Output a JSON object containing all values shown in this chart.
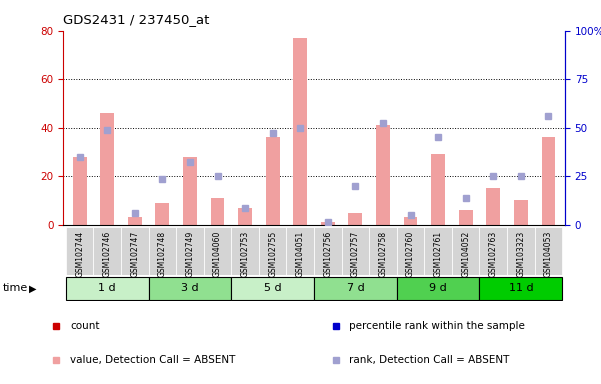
{
  "title": "GDS2431 / 237450_at",
  "samples": [
    "GSM102744",
    "GSM102746",
    "GSM102747",
    "GSM102748",
    "GSM102749",
    "GSM104060",
    "GSM102753",
    "GSM102755",
    "GSM104051",
    "GSM102756",
    "GSM102757",
    "GSM102758",
    "GSM102760",
    "GSM102761",
    "GSM104052",
    "GSM102763",
    "GSM103323",
    "GSM104053"
  ],
  "groups": [
    {
      "label": "1 d",
      "indices": [
        0,
        1,
        2
      ],
      "color": "#c8f0c8"
    },
    {
      "label": "3 d",
      "indices": [
        3,
        4,
        5
      ],
      "color": "#90e090"
    },
    {
      "label": "5 d",
      "indices": [
        6,
        7,
        8
      ],
      "color": "#c8f0c8"
    },
    {
      "label": "7 d",
      "indices": [
        9,
        10,
        11
      ],
      "color": "#90e090"
    },
    {
      "label": "9 d",
      "indices": [
        12,
        13,
        14
      ],
      "color": "#50d050"
    },
    {
      "label": "11 d",
      "indices": [
        15,
        16,
        17
      ],
      "color": "#00cc00"
    }
  ],
  "bar_values": [
    28,
    46,
    3,
    9,
    28,
    11,
    7,
    36,
    77,
    1,
    5,
    41,
    3,
    29,
    6,
    15,
    10,
    36
  ],
  "rank_values": [
    28,
    39,
    5,
    19,
    26,
    20,
    7,
    38,
    40,
    1,
    16,
    42,
    4,
    36,
    11,
    20,
    20,
    45
  ],
  "bar_color": "#f0a0a0",
  "rank_color": "#a0a0d0",
  "left_axis_color": "#cc0000",
  "right_axis_color": "#0000cc",
  "ylim_left": [
    0,
    80
  ],
  "ylim_right": [
    0,
    100
  ],
  "left_ticks": [
    0,
    20,
    40,
    60,
    80
  ],
  "right_ticks": [
    0,
    25,
    50,
    75,
    100
  ],
  "right_tick_labels": [
    "0",
    "25",
    "50",
    "75",
    "100%"
  ],
  "grid_color": "#000000",
  "bg_color": "#ffffff",
  "tick_bg": "#d0d0d0",
  "legend": [
    {
      "color": "#cc0000",
      "label": "count"
    },
    {
      "color": "#0000cc",
      "label": "percentile rank within the sample"
    },
    {
      "color": "#f0a0a0",
      "label": "value, Detection Call = ABSENT"
    },
    {
      "color": "#a0a0d0",
      "label": "rank, Detection Call = ABSENT"
    }
  ]
}
